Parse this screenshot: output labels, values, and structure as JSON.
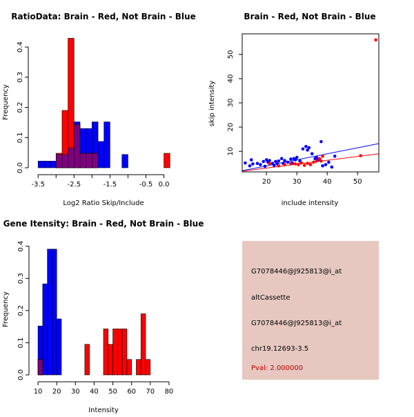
{
  "colors": {
    "red": "#ff0000",
    "blue": "#0000ff",
    "overlap": "#7f007f",
    "panel_bg": "#e6c8c0",
    "pval": "#b30000"
  },
  "chart_data": [
    {
      "id": "ratio",
      "type": "bar",
      "title": "RatioData: Brain - Red, Not Brain - Blue",
      "xlabel": "Log2 Ratio Skip/Include",
      "ylabel": "Frequency",
      "xlim": [
        -3.6,
        0.2
      ],
      "ylim": [
        0,
        0.43
      ],
      "xticks": [
        -3.5,
        -2.5,
        -1.5,
        -0.5
      ],
      "xtick_labels": [
        "-3.5",
        "-2.5",
        "-1.5",
        "-0.5"
      ],
      "xticks_minor": [
        -3.0,
        -2.0,
        -1.0,
        0.0
      ],
      "xtick_labels_minor": [
        "-3.0",
        "-2.0",
        "-1.0",
        "0.0"
      ],
      "yticks": [
        0,
        0.1,
        0.2,
        0.3,
        0.4
      ],
      "ytick_labels": [
        "0.0",
        "0.1",
        "0.2",
        "0.3",
        "0.4"
      ],
      "bin_width": 0.1667,
      "series": [
        {
          "name": "Not Brain",
          "color": "blue",
          "bins": [
            [
              -3.5,
              0.022
            ],
            [
              -3.333,
              0.022
            ],
            [
              -3.167,
              0.022
            ],
            [
              -3.0,
              0.044
            ],
            [
              -2.833,
              0.044
            ],
            [
              -2.667,
              0.065
            ],
            [
              -2.5,
              0.152
            ],
            [
              -2.333,
              0.13
            ],
            [
              -2.167,
              0.13
            ],
            [
              -2.0,
              0.152
            ],
            [
              -1.833,
              0.087
            ],
            [
              -1.667,
              0.152
            ],
            [
              -1.167,
              0.044
            ]
          ]
        },
        {
          "name": "Brain",
          "color": "red",
          "bins": [
            [
              -3.0,
              0.048
            ],
            [
              -2.833,
              0.19
            ],
            [
              -2.667,
              0.429
            ],
            [
              -2.5,
              0.143
            ],
            [
              -2.333,
              0.048
            ],
            [
              -2.167,
              0.048
            ],
            [
              -2.0,
              0.048
            ],
            [
              0.0,
              0.048
            ]
          ]
        }
      ]
    },
    {
      "id": "scatter",
      "type": "scatter",
      "title": "Brain - Red, Not Brain - Blue",
      "xlabel": "include intensity",
      "ylabel": "skip intensity",
      "xlim": [
        12,
        57
      ],
      "ylim": [
        1.5,
        58.5
      ],
      "xticks": [
        20,
        30,
        40,
        50
      ],
      "xtick_labels": [
        "20",
        "30",
        "40",
        "50"
      ],
      "yticks": [
        10,
        20,
        30,
        40,
        50
      ],
      "ytick_labels": [
        "10",
        "20",
        "30",
        "40",
        "50"
      ],
      "series": [
        {
          "name": "Not Brain",
          "color": "blue",
          "points": [
            [
              13,
              5.2
            ],
            [
              14.5,
              4.0
            ],
            [
              15,
              6.5
            ],
            [
              15.5,
              4.8
            ],
            [
              17,
              5.0
            ],
            [
              18,
              4.5
            ],
            [
              19,
              5.8
            ],
            [
              19.5,
              3.8
            ],
            [
              20,
              6.5
            ],
            [
              20.5,
              5.5
            ],
            [
              21,
              6.2
            ],
            [
              22,
              5.0
            ],
            [
              22.5,
              4.2
            ],
            [
              23,
              5.8
            ],
            [
              23.5,
              4.8
            ],
            [
              24,
              6.0
            ],
            [
              25,
              7.0
            ],
            [
              25.5,
              5.0
            ],
            [
              26,
              6.2
            ],
            [
              27,
              5.5
            ],
            [
              28,
              6.8
            ],
            [
              28.5,
              5.2
            ],
            [
              29,
              7.0
            ],
            [
              29.5,
              6.5
            ],
            [
              30,
              7.5
            ],
            [
              31,
              6.0
            ],
            [
              32,
              11.0
            ],
            [
              33,
              12.0
            ],
            [
              33.5,
              10.5
            ],
            [
              34,
              11.5
            ],
            [
              35,
              9.0
            ],
            [
              36,
              7.0
            ],
            [
              36.5,
              7.5
            ],
            [
              37,
              6.5
            ],
            [
              38,
              14.0
            ],
            [
              38.5,
              4.0
            ],
            [
              39.5,
              4.5
            ],
            [
              40.5,
              5.5
            ],
            [
              41.5,
              3.5
            ],
            [
              42.5,
              8.0
            ]
          ],
          "fit": [
            [
              12,
              2.0
            ],
            [
              57,
              13.2
            ]
          ]
        },
        {
          "name": "Brain",
          "color": "red",
          "points": [
            [
              21,
              5.0
            ],
            [
              24,
              4.0
            ],
            [
              26,
              4.5
            ],
            [
              28,
              5.0
            ],
            [
              29.5,
              4.8
            ],
            [
              30.5,
              4.5
            ],
            [
              31.5,
              5.2
            ],
            [
              32.5,
              4.2
            ],
            [
              33.5,
              5.0
            ],
            [
              34.5,
              4.5
            ],
            [
              35.5,
              5.5
            ],
            [
              36.5,
              6.0
            ],
            [
              37.5,
              7.0
            ],
            [
              38,
              6.0
            ],
            [
              38.5,
              8.0
            ],
            [
              51,
              8.2
            ],
            [
              56,
              56.0
            ]
          ],
          "fit": [
            [
              12,
              1.8
            ],
            [
              57,
              9.0
            ]
          ]
        }
      ]
    },
    {
      "id": "intensity",
      "type": "bar",
      "title": "Gene Itensity: Brain - Red, Not Brain - Blue",
      "xlabel": "Intensity",
      "ylabel": "Frequency",
      "xlim": [
        8.5,
        81.5
      ],
      "ylim": [
        0,
        0.41
      ],
      "xticks": [
        10,
        20,
        30,
        40,
        50,
        60,
        70,
        80
      ],
      "xtick_labels": [
        "10",
        "20",
        "30",
        "40",
        "50",
        "60",
        "70",
        "80"
      ],
      "yticks": [
        0,
        0.1,
        0.2,
        0.3,
        0.4
      ],
      "ytick_labels": [
        "0.0",
        "0.1",
        "0.2",
        "0.3",
        "0.4"
      ],
      "bin_width": 2.5,
      "series": [
        {
          "name": "Not Brain",
          "color": "blue",
          "bins": [
            [
              10,
              0.152
            ],
            [
              12.5,
              0.283
            ],
            [
              15,
              0.391
            ],
            [
              17.5,
              0.391
            ],
            [
              20,
              0.174
            ]
          ]
        },
        {
          "name": "Brain",
          "color": "red",
          "bins": [
            [
              10,
              0.048
            ],
            [
              35,
              0.095
            ],
            [
              45,
              0.143
            ],
            [
              47.5,
              0.095
            ],
            [
              50,
              0.143
            ],
            [
              52.5,
              0.143
            ],
            [
              55,
              0.143
            ],
            [
              57.5,
              0.048
            ],
            [
              62.5,
              0.048
            ],
            [
              65,
              0.19
            ],
            [
              67.5,
              0.048
            ]
          ]
        }
      ]
    }
  ],
  "info_panel": {
    "probe_id": "G7078446@J925813@i_at",
    "event_type": "altCassette",
    "probe_id_repeat": "G7078446@J925813@i_at",
    "location": "chr19.12693-3.5",
    "pval": "Pval: 2.000000"
  }
}
